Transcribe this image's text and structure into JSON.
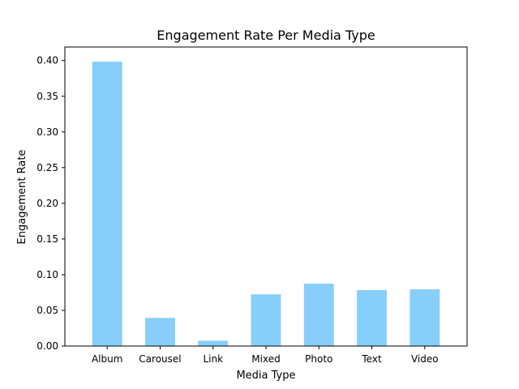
{
  "chart_data": {
    "type": "bar",
    "title": "Engagement Rate Per Media Type",
    "xlabel": "Media Type",
    "ylabel": "Engagement Rate",
    "categories": [
      "Album",
      "Carousel",
      "Link",
      "Mixed",
      "Photo",
      "Text",
      "Video"
    ],
    "values": [
      0.399,
      0.04,
      0.008,
      0.073,
      0.088,
      0.079,
      0.08
    ],
    "ylim": [
      0,
      0.419
    ],
    "yticks": [
      0.0,
      0.05,
      0.1,
      0.15,
      0.2,
      0.25,
      0.3,
      0.35,
      0.4
    ],
    "ytick_labels": [
      "0.00",
      "0.05",
      "0.10",
      "0.15",
      "0.20",
      "0.25",
      "0.30",
      "0.35",
      "0.40"
    ],
    "grid": false,
    "legend": "none",
    "colors": {
      "bar_fill": "#87cefa",
      "bar_edge": "#ffffff",
      "axes": "#000000"
    }
  }
}
